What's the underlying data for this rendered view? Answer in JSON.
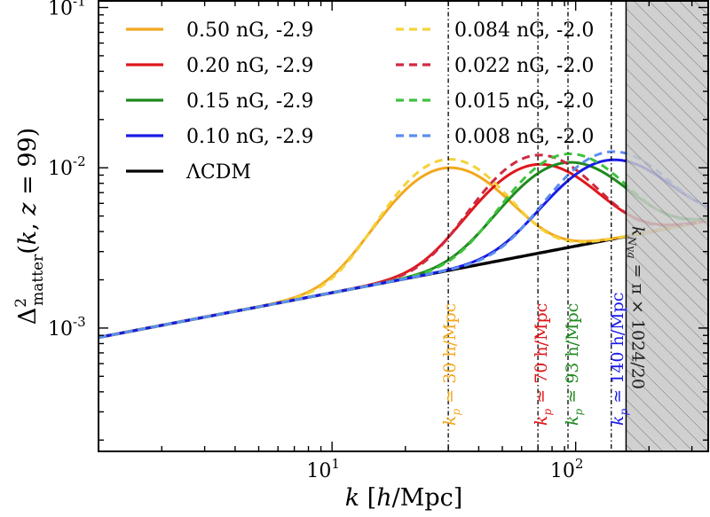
{
  "chart_data": {
    "type": "line",
    "xscale": "log",
    "yscale": "log",
    "xlim": [
      1.1,
      350
    ],
    "ylim": [
      0.00017,
      0.11
    ],
    "xlabel": "k [h/Mpc]",
    "ylabel": "Δ²matter(k, z = 99)",
    "x_ticks": [
      {
        "value": 10,
        "base": "10",
        "exp": "1"
      },
      {
        "value": 100,
        "base": "10",
        "exp": "2"
      }
    ],
    "y_ticks": [
      {
        "value": 0.001,
        "base": "10",
        "exp": "-3"
      },
      {
        "value": 0.01,
        "base": "10",
        "exp": "-2"
      },
      {
        "value": 0.1,
        "base": "10",
        "exp": "-1"
      }
    ],
    "baseline": {
      "name": "ΛCDM",
      "color": "#000000",
      "amplitude": 0.00085,
      "slope": 0.291
    },
    "series": [
      {
        "name": "0.50 nG, -2.9",
        "color": "#f2a81d",
        "dashed": false,
        "peak_k": 30,
        "peak_value": 0.01,
        "width": 0.2
      },
      {
        "name": "0.20 nG, -2.9",
        "color": "#e0171b",
        "dashed": false,
        "peak_k": 70,
        "peak_value": 0.0105,
        "width": 0.2
      },
      {
        "name": "0.15 nG, -2.9",
        "color": "#1f8a1f",
        "dashed": false,
        "peak_k": 93,
        "peak_value": 0.0108,
        "width": 0.2
      },
      {
        "name": "0.10 nG, -2.9",
        "color": "#1a1ae6",
        "dashed": false,
        "peak_k": 140,
        "peak_value": 0.0112,
        "width": 0.2
      },
      {
        "name": "0.084 nG, -2.0",
        "color": "#f4d23a",
        "dashed": true,
        "peak_k": 30,
        "peak_value": 0.0113,
        "width": 0.19
      },
      {
        "name": "0.022 nG, -2.0",
        "color": "#cf2a40",
        "dashed": true,
        "peak_k": 70,
        "peak_value": 0.012,
        "width": 0.19
      },
      {
        "name": "0.015 nG, -2.0",
        "color": "#3fc23f",
        "dashed": true,
        "peak_k": 93,
        "peak_value": 0.0122,
        "width": 0.19
      },
      {
        "name": "0.008 nG, -2.0",
        "color": "#5b8ef0",
        "dashed": true,
        "peak_k": 140,
        "peak_value": 0.0126,
        "width": 0.19
      }
    ],
    "peak_markers": [
      {
        "k": 30,
        "color": "#f2a81d",
        "label": "kp ≃ 30 h/Mpc",
        "sub_label": "p",
        "value_text": "30"
      },
      {
        "k": 70,
        "color": "#e0171b",
        "label": "kp ≃ 70 h/Mpc",
        "sub_label": "p",
        "value_text": "70"
      },
      {
        "k": 93,
        "color": "#1f8a1f",
        "label": "kp ≃ 93 h/Mpc",
        "sub_label": "p",
        "value_text": "93"
      },
      {
        "k": 140,
        "color": "#1a1ae6",
        "label": "kp ≃ 140 h/Mpc",
        "sub_label": "p",
        "value_text": "140"
      }
    ],
    "nyquist": {
      "k": 161,
      "label": "kNyq = π × 1024/20",
      "sub_label": "Nyq",
      "expr": "= π × 1024/20"
    },
    "legend": {
      "position": "top-left",
      "columns": 2
    },
    "units_text": "h/Mpc",
    "approx_symbol": "≃",
    "k_symbol": "k"
  }
}
